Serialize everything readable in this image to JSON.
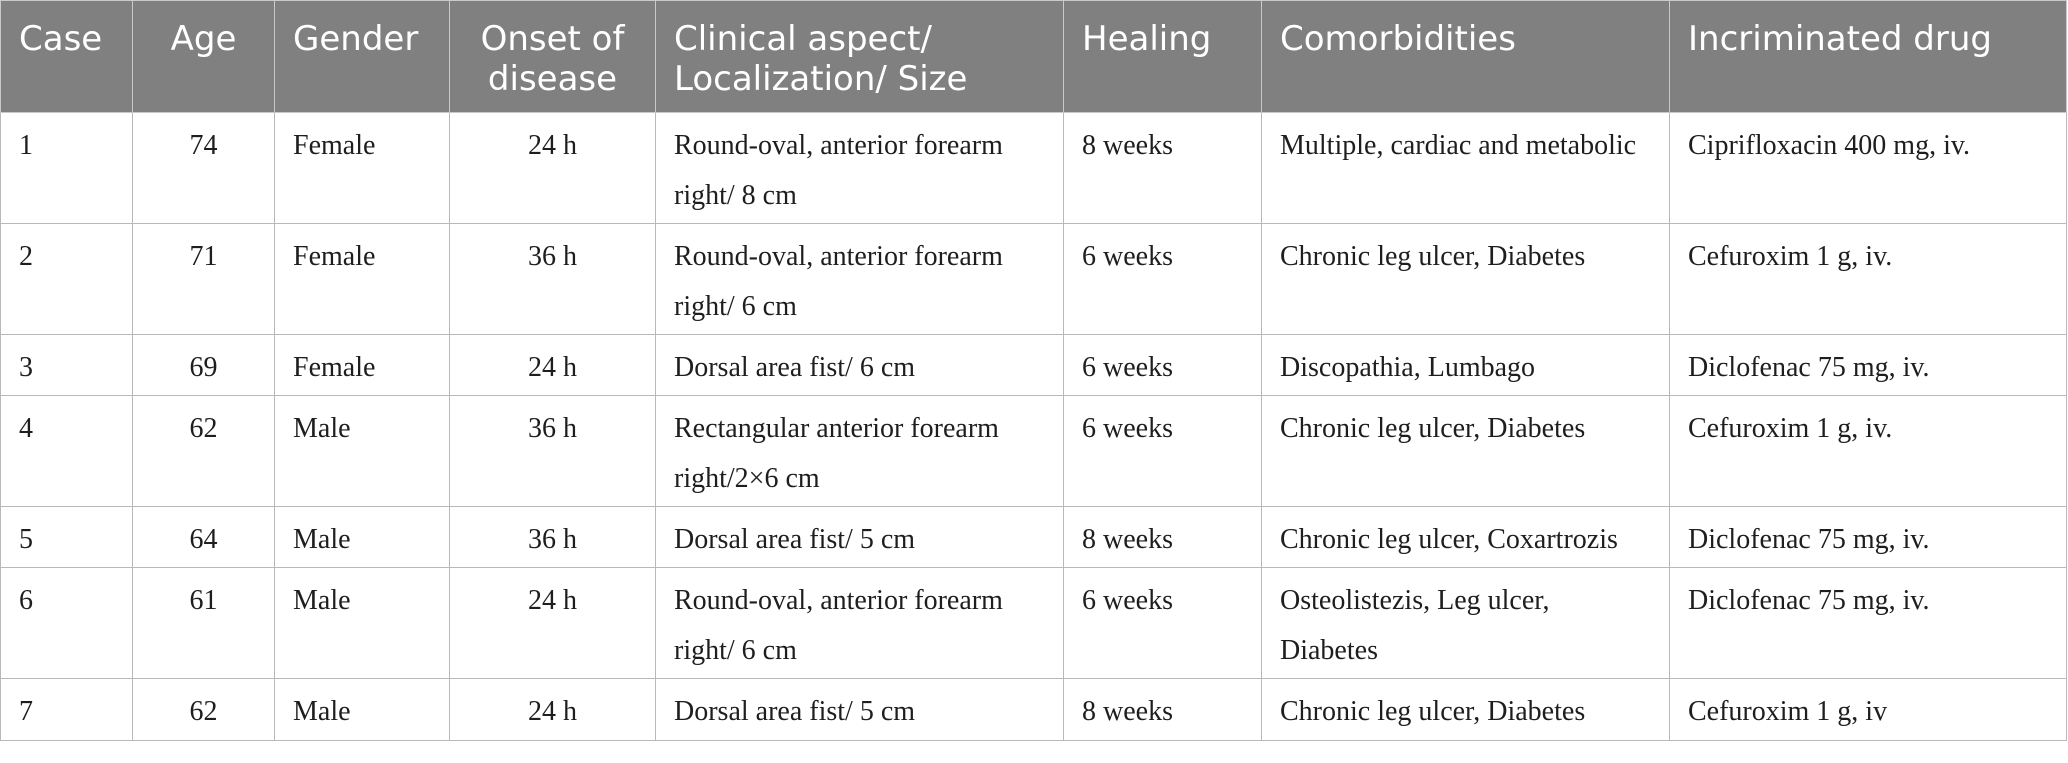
{
  "table": {
    "headers": [
      "Case",
      "Age",
      "Gender",
      "Onset of disease",
      "Clinical aspect/ Localization/ Size",
      "Healing",
      "Comorbidities",
      "Incriminated drug"
    ],
    "rows": [
      [
        "1",
        "74",
        "Female",
        "24 h",
        "Round-oval, anterior forearm right/ 8 cm",
        "8 weeks",
        "Multiple, cardiac and metabolic",
        "Ciprifloxacin 400 mg, iv."
      ],
      [
        "2",
        "71",
        "Female",
        "36 h",
        "Round-oval, anterior forearm right/ 6 cm",
        "6 weeks",
        "Chronic leg ulcer, Diabetes",
        "Cefuroxim 1 g, iv."
      ],
      [
        "3",
        "69",
        "Female",
        "24 h",
        "Dorsal area fist/ 6 cm",
        "6 weeks",
        "Discopathia, Lumbago",
        "Diclofenac 75 mg, iv."
      ],
      [
        "4",
        "62",
        "Male",
        "36 h",
        "Rectangular anterior forearm right/2×6 cm",
        "6 weeks",
        "Chronic leg ulcer, Diabetes",
        "Cefuroxim 1 g, iv."
      ],
      [
        "5",
        "64",
        "Male",
        "36 h",
        "Dorsal area fist/ 5 cm",
        "8 weeks",
        "Chronic leg ulcer, Coxartrozis",
        "Diclofenac 75 mg, iv."
      ],
      [
        "6",
        "61",
        "Male",
        "24 h",
        "Round-oval, anterior forearm right/ 6 cm",
        "6 weeks",
        "Osteolistezis, Leg ulcer, Diabetes",
        "Diclofenac 75 mg, iv."
      ],
      [
        "7",
        "62",
        "Male",
        "24 h",
        "Dorsal area fist/ 5 cm",
        "8 weeks",
        "Chronic leg ulcer, Diabetes",
        "Cefuroxim 1 g, iv"
      ]
    ]
  }
}
